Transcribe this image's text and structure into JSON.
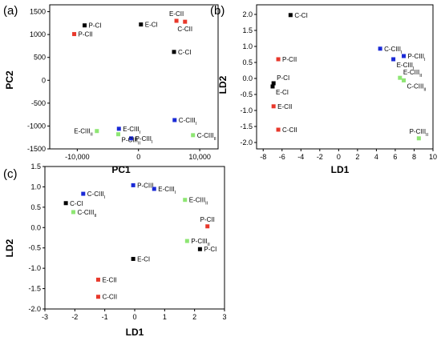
{
  "colors": {
    "CI": "#000000",
    "CII": "#e8382b",
    "CIII_I": "#1a2ad6",
    "CIII_II": "#8ee673",
    "axis": "#000000"
  },
  "chart_data": [
    {
      "panel": "(a)",
      "type": "scatter",
      "xlabel": "PC1",
      "ylabel": "PC2",
      "xlim": [
        -14500,
        13000
      ],
      "ylim": [
        -1500,
        1650
      ],
      "xticks": [
        -10000,
        0,
        10000
      ],
      "xtick_labels": [
        "-10,000",
        "0",
        "10,000"
      ],
      "yticks": [
        -1500,
        -1000,
        -500,
        0,
        500,
        1000,
        1500
      ],
      "ytick_labels": [
        "-1500",
        "-1000",
        "-500",
        "0",
        "500",
        "1000",
        "1500"
      ],
      "points": [
        {
          "label": "P-CI",
          "x": -8800,
          "y": 1200,
          "group": "CI",
          "labelpos": "right"
        },
        {
          "label": "P-CII",
          "x": -10500,
          "y": 1010,
          "group": "CII",
          "labelpos": "right"
        },
        {
          "label": "E-CI",
          "x": 400,
          "y": 1220,
          "group": "CI",
          "labelpos": "right"
        },
        {
          "label": "E-CII",
          "x": 6200,
          "y": 1300,
          "group": "CII",
          "labelpos": "above"
        },
        {
          "label": "C-CII",
          "x": 7600,
          "y": 1280,
          "group": "CII",
          "labelpos": "below"
        },
        {
          "label": "C-CI",
          "x": 5800,
          "y": 620,
          "group": "CI",
          "labelpos": "right"
        },
        {
          "label": "C-CIII",
          "sub": "I",
          "x": 5900,
          "y": -870,
          "group": "CIII_I",
          "labelpos": "right"
        },
        {
          "label": "E-CIII",
          "sub": "I",
          "x": -3200,
          "y": -1060,
          "group": "CIII_I",
          "labelpos": "right"
        },
        {
          "label": "P-CIII",
          "sub": "I",
          "x": -1200,
          "y": -1270,
          "group": "CIII_I",
          "labelpos": "right"
        },
        {
          "label": "E-CIII",
          "sub": "II",
          "x": -6800,
          "y": -1110,
          "group": "CIII_II",
          "labelpos": "left"
        },
        {
          "label": "P-CIII",
          "sub": "II",
          "x": -3300,
          "y": -1180,
          "group": "CIII_II",
          "labelpos": "belowright"
        },
        {
          "label": "C-CIII",
          "sub": "II",
          "x": 8900,
          "y": -1200,
          "group": "CIII_II",
          "labelpos": "right"
        }
      ]
    },
    {
      "panel": "(b)",
      "type": "scatter",
      "xlabel": "LD1",
      "ylabel": "LD2",
      "xlim": [
        -8.7,
        10
      ],
      "ylim": [
        -2.2,
        2.3
      ],
      "xticks": [
        -8,
        -6,
        -4,
        -2,
        0,
        2,
        4,
        6,
        8,
        10
      ],
      "xtick_labels": [
        "-8",
        "-6",
        "-4",
        "-2",
        "0",
        "2",
        "4",
        "6",
        "8",
        "10"
      ],
      "yticks": [
        -2.0,
        -1.5,
        -1.0,
        -0.5,
        0.0,
        0.5,
        1.0,
        1.5,
        2.0
      ],
      "ytick_labels": [
        "-2.0",
        "-1.5",
        "-1.0",
        "-0.5",
        "0.0",
        "0.5",
        "1.0",
        "1.5",
        "2.0"
      ],
      "points": [
        {
          "label": "C-CI",
          "x": -5.1,
          "y": 1.98,
          "group": "CI",
          "labelpos": "right"
        },
        {
          "label": "P-CII",
          "x": -6.4,
          "y": 0.6,
          "group": "CII",
          "labelpos": "right"
        },
        {
          "label": "P-CI",
          "x": -6.9,
          "y": -0.15,
          "group": "CI",
          "labelpos": "aboveright"
        },
        {
          "label": "E-CI",
          "x": -7.0,
          "y": -0.25,
          "group": "CI",
          "labelpos": "belowright"
        },
        {
          "label": "E-CII",
          "x": -6.9,
          "y": -0.87,
          "group": "CII",
          "labelpos": "right"
        },
        {
          "label": "C-CII",
          "x": -6.4,
          "y": -1.6,
          "group": "CII",
          "labelpos": "right"
        },
        {
          "label": "C-CIII",
          "sub": "I",
          "x": 4.4,
          "y": 0.93,
          "group": "CIII_I",
          "labelpos": "right"
        },
        {
          "label": "P-CIII",
          "sub": "I",
          "x": 6.9,
          "y": 0.7,
          "group": "CIII_I",
          "labelpos": "right"
        },
        {
          "label": "E-CIII",
          "sub": "I",
          "x": 5.8,
          "y": 0.6,
          "group": "CIII_I",
          "labelpos": "belowright"
        },
        {
          "label": "E-CIII",
          "sub": "II",
          "x": 6.5,
          "y": 0.02,
          "group": "CIII_II",
          "labelpos": "aboveright"
        },
        {
          "label": "C-CIII",
          "sub": "II",
          "x": 6.9,
          "y": -0.06,
          "group": "CIII_II",
          "labelpos": "belowright"
        },
        {
          "label": "P-CIII",
          "sub": "II",
          "x": 8.5,
          "y": -1.87,
          "group": "CIII_II",
          "labelpos": "above"
        }
      ]
    },
    {
      "panel": "(c)",
      "type": "scatter",
      "xlabel": "LD1",
      "ylabel": "LD2",
      "xlim": [
        -3,
        3
      ],
      "ylim": [
        -2.0,
        1.5
      ],
      "xticks": [
        -3,
        -2,
        -1,
        0,
        1,
        2,
        3
      ],
      "xtick_labels": [
        "-3",
        "-2",
        "-1",
        "0",
        "1",
        "2",
        "3"
      ],
      "yticks": [
        -2.0,
        -1.5,
        -1.0,
        -0.5,
        0.0,
        0.5,
        1.0,
        1.5
      ],
      "ytick_labels": [
        "-2.0",
        "-1.5",
        "-1.0",
        "-0.5",
        "0.0",
        "0.5",
        "1.0",
        "1.5"
      ],
      "points": [
        {
          "label": "C-CI",
          "x": -2.3,
          "y": 0.6,
          "group": "CI",
          "labelpos": "right"
        },
        {
          "label": "C-CIII",
          "sub": "I",
          "x": -1.72,
          "y": 0.83,
          "group": "CIII_I",
          "labelpos": "right"
        },
        {
          "label": "C-CIII",
          "sub": "II",
          "x": -2.05,
          "y": 0.38,
          "group": "CIII_II",
          "labelpos": "right"
        },
        {
          "label": "P-CIII",
          "sub": "I",
          "x": -0.05,
          "y": 1.04,
          "group": "CIII_I",
          "labelpos": "right"
        },
        {
          "label": "E-CIII",
          "sub": "I",
          "x": 0.65,
          "y": 0.95,
          "group": "CIII_I",
          "labelpos": "right"
        },
        {
          "label": "E-CIII",
          "sub": "II",
          "x": 1.68,
          "y": 0.68,
          "group": "CIII_II",
          "labelpos": "right"
        },
        {
          "label": "P-CII",
          "x": 2.43,
          "y": 0.03,
          "group": "CII",
          "labelpos": "above"
        },
        {
          "label": "P-CIII",
          "sub": "II",
          "x": 1.75,
          "y": -0.33,
          "group": "CIII_II",
          "labelpos": "right"
        },
        {
          "label": "P-CI",
          "x": 2.18,
          "y": -0.53,
          "group": "CI",
          "labelpos": "right"
        },
        {
          "label": "E-CI",
          "x": -0.05,
          "y": -0.77,
          "group": "CI",
          "labelpos": "right"
        },
        {
          "label": "E-CII",
          "x": -1.22,
          "y": -1.28,
          "group": "CII",
          "labelpos": "right"
        },
        {
          "label": "C-CII",
          "x": -1.22,
          "y": -1.7,
          "group": "CII",
          "labelpos": "right"
        }
      ]
    }
  ]
}
